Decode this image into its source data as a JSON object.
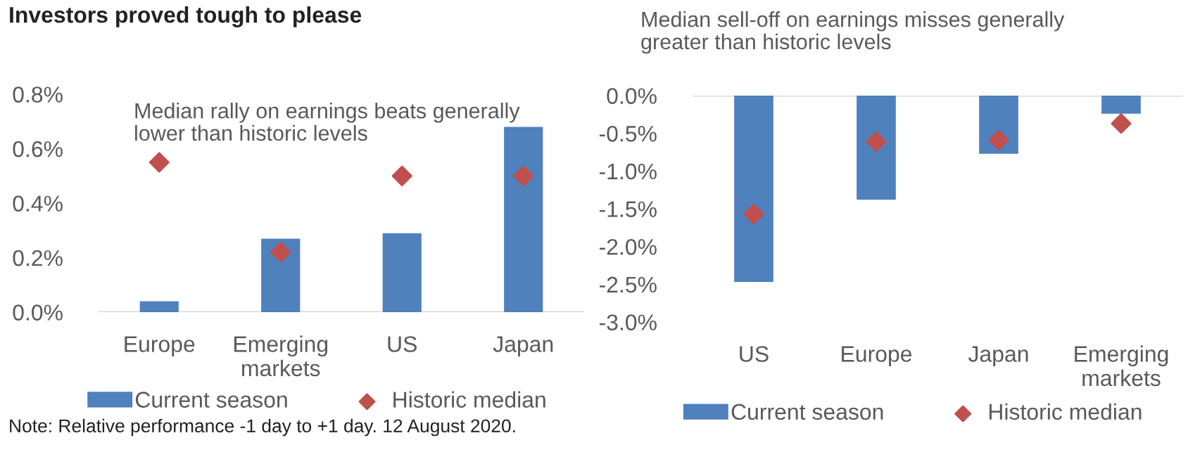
{
  "chart_data": [
    {
      "type": "bar",
      "title": "Investors proved tough to please",
      "subtitle": "Median rally on earnings beats generally\nlower than historic levels",
      "categories": [
        "Europe",
        "Emerging\nmarkets",
        "US",
        "Japan"
      ],
      "series": [
        {
          "name": "Current season",
          "type": "bar",
          "color": "#4f81bd",
          "values": [
            0.04,
            0.27,
            0.29,
            0.68
          ]
        },
        {
          "name": "Historic median",
          "type": "scatter",
          "marker": "diamond",
          "color": "#c0504d",
          "values": [
            0.55,
            0.22,
            0.5,
            0.5
          ]
        }
      ],
      "ylim": [
        0,
        0.8
      ],
      "yticks": [
        {
          "value": 0,
          "label": "0.0%"
        },
        {
          "value": 0.2,
          "label": "0.2%"
        },
        {
          "value": 0.4,
          "label": "0.4%"
        },
        {
          "value": 0.6,
          "label": "0.6%"
        },
        {
          "value": 0.8,
          "label": "0.8%"
        }
      ],
      "legend": "bottom",
      "grid": false,
      "annotations": [
        "Note: Relative performance -1 day to +1 day. 12 August 2020."
      ]
    },
    {
      "type": "bar",
      "subtitle": "Median sell-off on earnings misses generally\ngreater than historic levels",
      "categories": [
        "US",
        "Europe",
        "Japan",
        "Emerging\nmarkets"
      ],
      "series": [
        {
          "name": "Current season",
          "type": "bar",
          "color": "#4f81bd",
          "values": [
            -2.47,
            -1.38,
            -0.77,
            -0.24
          ]
        },
        {
          "name": "Historic median",
          "type": "scatter",
          "marker": "diamond",
          "color": "#c0504d",
          "values": [
            -1.57,
            -0.61,
            -0.59,
            -0.37
          ]
        }
      ],
      "ylim": [
        -3.0,
        0
      ],
      "yticks": [
        {
          "value": -3.0,
          "label": "-3.0%"
        },
        {
          "value": -2.5,
          "label": "-2.5%"
        },
        {
          "value": -2.0,
          "label": "-2.0%"
        },
        {
          "value": -1.5,
          "label": "-1.5%"
        },
        {
          "value": -1.0,
          "label": "-1.0%"
        },
        {
          "value": -0.5,
          "label": "-0.5%"
        },
        {
          "value": 0,
          "label": "0.0%"
        }
      ],
      "legend": "bottom",
      "grid": false
    }
  ]
}
